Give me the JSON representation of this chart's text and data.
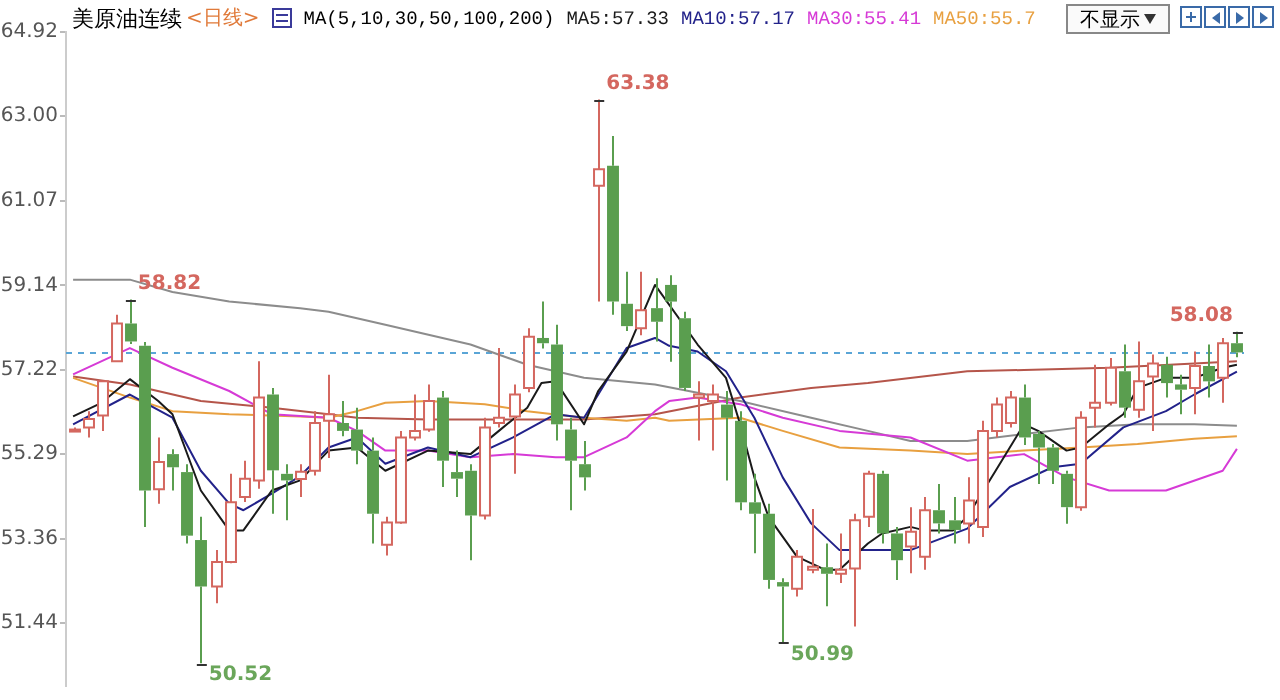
{
  "chart_data": {
    "type": "candlestick",
    "title": "美原油连续",
    "subtitle": "<日线>",
    "categories": [
      null,
      null,
      null,
      null,
      null,
      null,
      null,
      null,
      null,
      null,
      null,
      null,
      null,
      null,
      null,
      null,
      null,
      null,
      null,
      null,
      null,
      null,
      null,
      null,
      null,
      null,
      null,
      null,
      null,
      null,
      null,
      null,
      null,
      null,
      null,
      null,
      null,
      null,
      null,
      null,
      null,
      null,
      null,
      null,
      null,
      null,
      null,
      null,
      null,
      null,
      null,
      null,
      null,
      null,
      null,
      null,
      null,
      null,
      null,
      null,
      null,
      null,
      null,
      null,
      null,
      null,
      null,
      null,
      null,
      null,
      null,
      null,
      null,
      null,
      null,
      null,
      null,
      null,
      null,
      null,
      null,
      null,
      null
    ],
    "ohlc": [
      [
        55.85,
        55.9,
        55.8,
        55.85
      ],
      [
        55.9,
        56.27,
        55.67,
        56.09
      ],
      [
        56.17,
        56.95,
        55.82,
        56.95
      ],
      [
        57.41,
        58.47,
        57.4,
        58.27
      ],
      [
        58.27,
        58.82,
        57.8,
        57.86
      ],
      [
        57.76,
        57.85,
        53.63,
        54.46
      ],
      [
        54.49,
        55.67,
        54.16,
        55.11
      ],
      [
        55.29,
        55.4,
        54.46,
        54.99
      ],
      [
        54.88,
        55.06,
        53.25,
        53.43
      ],
      [
        53.33,
        53.86,
        50.52,
        52.27
      ],
      [
        52.27,
        53.1,
        51.89,
        52.83
      ],
      [
        52.83,
        54.84,
        52.8,
        54.19
      ],
      [
        54.31,
        55.14,
        54.2,
        54.73
      ],
      [
        54.69,
        57.41,
        54.5,
        56.58
      ],
      [
        56.65,
        56.8,
        53.93,
        54.92
      ],
      [
        54.84,
        55.06,
        53.78,
        54.69
      ],
      [
        54.72,
        55.06,
        54.31,
        54.89
      ],
      [
        54.91,
        56.27,
        54.8,
        56.0
      ],
      [
        56.05,
        57.1,
        55.2,
        56.2
      ],
      [
        56.0,
        56.5,
        55.7,
        55.82
      ],
      [
        55.85,
        56.35,
        55.06,
        55.37
      ],
      [
        55.37,
        55.67,
        53.25,
        53.93
      ],
      [
        53.22,
        53.86,
        52.98,
        53.73
      ],
      [
        53.73,
        55.82,
        53.7,
        55.67
      ],
      [
        55.67,
        56.65,
        55.6,
        55.82
      ],
      [
        55.85,
        56.88,
        55.8,
        56.5
      ],
      [
        56.58,
        56.73,
        54.54,
        55.14
      ],
      [
        54.88,
        55.37,
        54.31,
        54.73
      ],
      [
        54.91,
        55.06,
        52.87,
        53.89
      ],
      [
        53.89,
        56.12,
        53.8,
        55.9
      ],
      [
        56.0,
        57.71,
        55.9,
        56.12
      ],
      [
        56.15,
        56.88,
        54.84,
        56.65
      ],
      [
        56.8,
        58.16,
        56.7,
        57.97
      ],
      [
        57.94,
        58.77,
        57.7,
        57.82
      ],
      [
        57.79,
        58.24,
        55.6,
        55.97
      ],
      [
        55.85,
        56.12,
        54.01,
        55.14
      ],
      [
        55.06,
        55.59,
        54.46,
        54.76
      ],
      [
        61.41,
        63.38,
        58.77,
        61.79
      ],
      [
        61.87,
        62.55,
        58.47,
        58.77
      ],
      [
        58.72,
        59.45,
        58.1,
        58.21
      ],
      [
        58.16,
        59.45,
        58.0,
        58.57
      ],
      [
        58.62,
        59.3,
        57.86,
        58.31
      ],
      [
        59.15,
        59.37,
        57.4,
        58.77
      ],
      [
        58.39,
        58.54,
        56.73,
        56.8
      ],
      [
        56.58,
        56.95,
        55.6,
        56.65
      ],
      [
        56.5,
        56.88,
        55.37,
        56.65
      ],
      [
        56.42,
        56.73,
        54.69,
        56.12
      ],
      [
        56.05,
        56.27,
        54.01,
        54.19
      ],
      [
        54.19,
        54.84,
        53.03,
        53.93
      ],
      [
        53.93,
        54.16,
        52.22,
        52.42
      ],
      [
        52.37,
        52.46,
        50.99,
        52.27
      ],
      [
        52.22,
        53.1,
        52.04,
        52.95
      ],
      [
        52.65,
        54.04,
        52.57,
        52.72
      ],
      [
        52.71,
        53.25,
        51.82,
        52.56
      ],
      [
        52.56,
        53.48,
        52.35,
        52.65
      ],
      [
        52.68,
        53.93,
        51.36,
        53.78
      ],
      [
        53.86,
        54.91,
        53.63,
        54.84
      ],
      [
        54.84,
        54.91,
        53.25,
        53.48
      ],
      [
        53.48,
        53.63,
        52.42,
        52.87
      ],
      [
        53.18,
        54.08,
        52.57,
        53.52
      ],
      [
        52.95,
        54.31,
        52.65,
        54.01
      ],
      [
        54.01,
        54.61,
        53.48,
        53.71
      ],
      [
        53.78,
        54.31,
        53.25,
        53.56
      ],
      [
        53.71,
        54.76,
        53.25,
        54.23
      ],
      [
        53.63,
        56.05,
        53.4,
        55.82
      ],
      [
        55.82,
        56.58,
        55.67,
        56.42
      ],
      [
        56.0,
        56.73,
        55.9,
        56.58
      ],
      [
        56.58,
        56.88,
        55.5,
        55.67
      ],
      [
        55.75,
        55.82,
        54.61,
        55.44
      ],
      [
        55.44,
        55.52,
        54.61,
        54.91
      ],
      [
        54.84,
        54.91,
        53.7,
        54.08
      ],
      [
        54.08,
        56.27,
        54.0,
        56.12
      ],
      [
        56.35,
        57.33,
        55.9,
        56.46
      ],
      [
        56.46,
        57.48,
        56.4,
        57.26
      ],
      [
        57.18,
        57.79,
        56.12,
        56.35
      ],
      [
        56.3,
        57.86,
        56.12,
        56.95
      ],
      [
        57.06,
        57.56,
        55.82,
        57.36
      ],
      [
        57.33,
        57.51,
        56.58,
        56.91
      ],
      [
        56.88,
        57.1,
        56.2,
        56.76
      ],
      [
        56.8,
        57.63,
        56.2,
        57.3
      ],
      [
        57.3,
        57.79,
        56.58,
        56.95
      ],
      [
        57.03,
        57.94,
        56.46,
        57.82
      ],
      [
        57.82,
        58.08,
        57.5,
        57.61
      ]
    ],
    "series": [
      {
        "type": "line",
        "name": "MA5:57.33",
        "color": "#1a1a1a",
        "values": [
          56.15,
          null,
          56.46,
          null,
          57.0,
          null,
          56.5,
          56.2,
          null,
          54.46,
          null,
          53.55,
          53.55,
          null,
          54.46,
          null,
          54.69,
          null,
          55.37,
          null,
          55.44,
          null,
          54.91,
          null,
          null,
          55.37,
          null,
          null,
          55.29,
          null,
          55.82,
          null,
          56.35,
          56.91,
          56.95,
          null,
          55.97,
          56.73,
          null,
          57.63,
          null,
          59.15,
          null,
          null,
          57.79,
          null,
          57.03,
          55.97,
          54.76,
          53.86,
          null,
          52.95,
          null,
          52.65,
          52.65,
          null,
          53.25,
          53.48,
          null,
          53.63,
          53.55,
          null,
          53.55,
          53.86,
          null,
          54.91,
          null,
          55.97,
          55.82,
          null,
          55.37,
          55.44,
          null,
          55.97,
          56.2,
          56.8,
          null,
          57.03,
          null,
          57.03,
          null,
          57.26,
          57.33
        ]
      },
      {
        "type": "line",
        "name": "MA10:57.17",
        "color": "#22228a",
        "values": [
          55.97,
          null,
          null,
          null,
          56.65,
          null,
          null,
          56.12,
          null,
          54.91,
          null,
          54.16,
          54.01,
          null,
          54.39,
          null,
          54.79,
          null,
          55.44,
          null,
          55.67,
          null,
          55.07,
          null,
          null,
          55.44,
          null,
          null,
          55.22,
          null,
          null,
          55.67,
          null,
          null,
          56.2,
          null,
          56.12,
          null,
          null,
          57.71,
          null,
          57.94,
          57.76,
          null,
          57.63,
          null,
          57.18,
          null,
          56.12,
          null,
          54.76,
          null,
          53.71,
          null,
          53.1,
          null,
          53.1,
          null,
          null,
          53.1,
          null,
          null,
          null,
          53.59,
          null,
          null,
          54.54,
          null,
          null,
          54.99,
          null,
          55.07,
          null,
          null,
          55.9,
          null,
          null,
          56.27,
          null,
          56.65,
          null,
          null,
          57.17
        ]
      },
      {
        "type": "line",
        "name": "MA30:55.41",
        "color": "#d63ad6",
        "values": [
          57.11,
          null,
          null,
          null,
          57.71,
          null,
          null,
          57.26,
          null,
          null,
          null,
          56.73,
          null,
          null,
          56.2,
          null,
          null,
          null,
          56.12,
          null,
          55.82,
          null,
          55.37,
          null,
          null,
          55.37,
          null,
          null,
          55.22,
          null,
          null,
          55.29,
          null,
          null,
          55.22,
          null,
          55.22,
          null,
          null,
          55.67,
          null,
          56.27,
          56.5,
          null,
          56.58,
          null,
          null,
          56.43,
          null,
          null,
          56.12,
          null,
          null,
          null,
          55.82,
          null,
          null,
          null,
          null,
          55.67,
          null,
          null,
          null,
          55.14,
          null,
          null,
          null,
          55.29,
          null,
          null,
          54.76,
          null,
          null,
          54.46,
          null,
          null,
          null,
          54.46,
          null,
          null,
          null,
          54.91,
          55.41
        ]
      },
      {
        "type": "line",
        "name": "MA50:55.7",
        "color": "#e8a040",
        "values": [
          57.03,
          null,
          null,
          null,
          56.58,
          null,
          null,
          56.27,
          null,
          null,
          null,
          56.2,
          null,
          null,
          null,
          null,
          56.15,
          null,
          56.12,
          null,
          56.27,
          null,
          56.46,
          null,
          null,
          56.5,
          null,
          null,
          null,
          56.43,
          null,
          null,
          56.27,
          null,
          null,
          null,
          56.12,
          null,
          null,
          56.05,
          null,
          56.12,
          56.05,
          null,
          null,
          null,
          null,
          56.12,
          null,
          null,
          55.82,
          null,
          null,
          null,
          55.44,
          null,
          null,
          null,
          null,
          55.37,
          null,
          null,
          null,
          55.29,
          null,
          null,
          null,
          55.37,
          null,
          null,
          null,
          55.44,
          null,
          null,
          null,
          55.52,
          null,
          null,
          null,
          55.64,
          null,
          null,
          55.7
        ]
      },
      {
        "type": "line",
        "color": "#8c8c8c",
        "values": [
          59.27,
          null,
          null,
          null,
          59.27,
          null,
          null,
          58.99,
          null,
          null,
          null,
          58.77,
          null,
          null,
          null,
          null,
          58.62,
          null,
          58.54,
          null,
          null,
          null,
          58.24,
          null,
          null,
          null,
          null,
          null,
          57.79,
          null,
          null,
          null,
          57.33,
          null,
          null,
          null,
          57.03,
          null,
          null,
          null,
          null,
          56.88,
          null,
          null,
          null,
          null,
          null,
          56.5,
          null,
          null,
          null,
          null,
          56.12,
          null,
          null,
          null,
          55.82,
          null,
          null,
          55.59,
          null,
          null,
          null,
          55.59,
          null,
          null,
          null,
          55.75,
          null,
          null,
          null,
          55.9,
          null,
          null,
          null,
          55.97,
          null,
          null,
          null,
          55.97,
          null,
          null,
          55.94
        ]
      },
      {
        "type": "line",
        "color": "#b5554a",
        "values": [
          57.06,
          null,
          null,
          null,
          56.88,
          null,
          null,
          null,
          null,
          56.5,
          null,
          null,
          null,
          null,
          56.35,
          null,
          null,
          null,
          56.2,
          null,
          56.12,
          null,
          null,
          null,
          null,
          56.08,
          null,
          null,
          null,
          null,
          null,
          null,
          56.08,
          null,
          null,
          null,
          56.08,
          null,
          null,
          null,
          null,
          56.2,
          null,
          null,
          null,
          null,
          null,
          56.58,
          null,
          null,
          null,
          null,
          56.8,
          null,
          null,
          null,
          56.91,
          null,
          null,
          null,
          null,
          null,
          null,
          57.18,
          null,
          null,
          null,
          57.21,
          null,
          null,
          null,
          null,
          null,
          57.26,
          null,
          null,
          null,
          null,
          null,
          57.36,
          null,
          null,
          57.41
        ]
      }
    ],
    "ylim": [
      50.0,
      64.92
    ],
    "yticks": [
      51.44,
      53.36,
      55.29,
      57.22,
      59.14,
      61.07,
      {
        "value": 63,
        "label": "63.00"
      },
      64.92
    ],
    "ref_lines": [
      {
        "axis": "y",
        "value": 57.61,
        "color": "#5aa5d6",
        "line_style": "dashed"
      }
    ],
    "annotations": [
      "MA(5,10,30,50,100,200)",
      "不显示",
      "58.82",
      "63.38",
      "50.52",
      "50.99",
      "58.08"
    ],
    "grid": false
  }
}
